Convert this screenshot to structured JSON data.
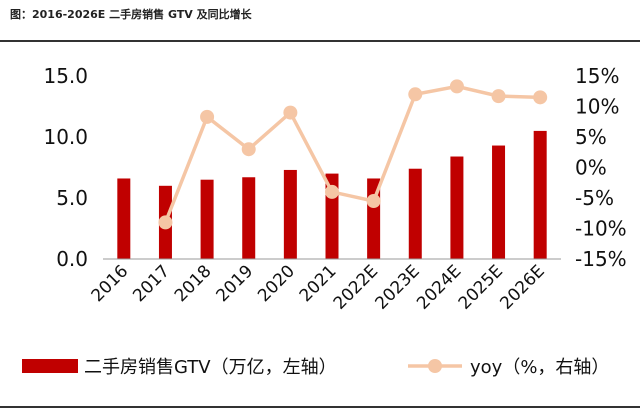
{
  "caption": "图：2016-2026E 二手房销售 GTV 及同比增长",
  "chart_data": {
    "type": "bar+line",
    "categories": [
      "2016",
      "2017",
      "2018",
      "2019",
      "2020",
      "2021",
      "2022E",
      "2023E",
      "2024E",
      "2025E",
      "2026E"
    ],
    "series": [
      {
        "name": "二手房销售GTV（万亿，左轴）",
        "type": "bar",
        "axis": "left",
        "color": "#C00000",
        "values": [
          6.6,
          6.0,
          6.5,
          6.7,
          7.3,
          7.0,
          6.6,
          7.4,
          8.4,
          9.3,
          10.5
        ]
      },
      {
        "name": "yoy（%，右轴）",
        "type": "line",
        "axis": "right",
        "color": "#F5C6A5",
        "values": [
          null,
          -9.0,
          8.3,
          3.0,
          9.0,
          -4.0,
          -5.5,
          12.0,
          13.3,
          11.7,
          11.5
        ]
      }
    ],
    "left_axis": {
      "ylim": [
        0,
        15
      ],
      "ticks": [
        "0.0",
        "5.0",
        "10.0",
        "15.0"
      ]
    },
    "right_axis": {
      "ylim": [
        -15,
        15
      ],
      "ticks": [
        "-15%",
        "-10%",
        "-5%",
        "0%",
        "5%",
        "10%",
        "15%"
      ]
    },
    "legend_position": "bottom",
    "grid": false
  }
}
